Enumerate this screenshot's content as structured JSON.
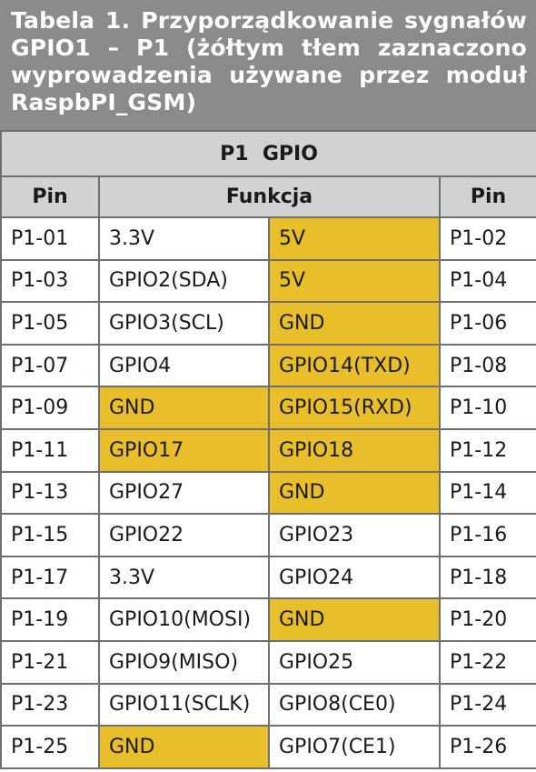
{
  "caption": "Tabela 1. Przyporządkowanie sygnałów GPIO1 – P1 (żółtym tłem zaznaczono wyprowadzenia używane przez moduł RaspbPI_GSM)",
  "colors": {
    "caption_bg": "#8a8b8d",
    "header_bg": "#d1d2d4",
    "highlight": "#e8be2a",
    "border": "#6f6f71"
  },
  "table": {
    "group_header": "P1  GPIO",
    "columns": {
      "pin_left": "Pin",
      "function": "Funkcja",
      "pin_right": "Pin"
    },
    "rows": [
      {
        "pin_left": "P1-01",
        "func_left": "3.3V",
        "hl_left": false,
        "func_right": "5V",
        "hl_right": true,
        "pin_right": "P1-02"
      },
      {
        "pin_left": "P1-03",
        "func_left": "GPIO2(SDA)",
        "hl_left": false,
        "func_right": "5V",
        "hl_right": true,
        "pin_right": "P1-04"
      },
      {
        "pin_left": "P1-05",
        "func_left": "GPIO3(SCL)",
        "hl_left": false,
        "func_right": "GND",
        "hl_right": true,
        "pin_right": "P1-06"
      },
      {
        "pin_left": "P1-07",
        "func_left": "GPIO4",
        "hl_left": false,
        "func_right": "GPIO14(TXD)",
        "hl_right": true,
        "pin_right": "P1-08"
      },
      {
        "pin_left": "P1-09",
        "func_left": "GND",
        "hl_left": true,
        "func_right": "GPIO15(RXD)",
        "hl_right": true,
        "pin_right": "P1-10"
      },
      {
        "pin_left": "P1-11",
        "func_left": "GPIO17",
        "hl_left": true,
        "func_right": "GPIO18",
        "hl_right": true,
        "pin_right": "P1-12"
      },
      {
        "pin_left": "P1-13",
        "func_left": "GPIO27",
        "hl_left": false,
        "func_right": "GND",
        "hl_right": true,
        "pin_right": "P1-14"
      },
      {
        "pin_left": "P1-15",
        "func_left": "GPIO22",
        "hl_left": false,
        "func_right": "GPIO23",
        "hl_right": false,
        "pin_right": "P1-16"
      },
      {
        "pin_left": "P1-17",
        "func_left": "3.3V",
        "hl_left": false,
        "func_right": "GPIO24",
        "hl_right": false,
        "pin_right": "P1-18"
      },
      {
        "pin_left": "P1-19",
        "func_left": "GPIO10(MOSI)",
        "hl_left": false,
        "func_right": "GND",
        "hl_right": true,
        "pin_right": "P1-20"
      },
      {
        "pin_left": "P1-21",
        "func_left": "GPIO9(MISO)",
        "hl_left": false,
        "func_right": "GPIO25",
        "hl_right": false,
        "pin_right": "P1-22"
      },
      {
        "pin_left": "P1-23",
        "func_left": "GPIO11(SCLK)",
        "hl_left": false,
        "func_right": "GPIO8(CE0)",
        "hl_right": false,
        "pin_right": "P1-24"
      },
      {
        "pin_left": "P1-25",
        "func_left": "GND",
        "hl_left": true,
        "func_right": "GPIO7(CE1)",
        "hl_right": false,
        "pin_right": "P1-26"
      }
    ]
  }
}
